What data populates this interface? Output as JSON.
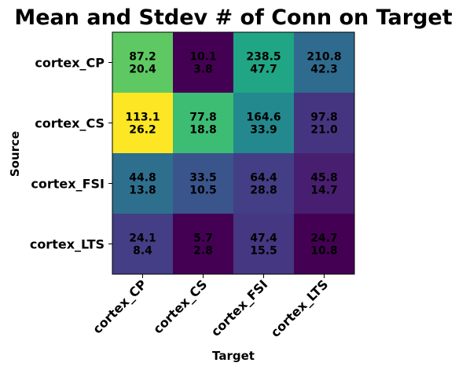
{
  "chart_data": {
    "type": "heatmap",
    "title": "Mean and Stdev # of Conn on Target",
    "xlabel": "Target",
    "ylabel": "Source",
    "x_categories": [
      "cortex_CP",
      "cortex_CS",
      "cortex_FSI",
      "cortex_LTS"
    ],
    "y_categories": [
      "cortex_CP",
      "cortex_CS",
      "cortex_FSI",
      "cortex_LTS"
    ],
    "mean": [
      [
        "87.2",
        "10.1",
        "238.5",
        "210.8"
      ],
      [
        "113.1",
        "77.8",
        "164.6",
        "97.8"
      ],
      [
        "44.8",
        "33.5",
        "64.4",
        "45.8"
      ],
      [
        "24.1",
        "5.7",
        "47.4",
        "24.7"
      ]
    ],
    "stdev": [
      [
        "20.4",
        "3.8",
        "47.7",
        "42.3"
      ],
      [
        "26.2",
        "18.8",
        "33.9",
        "21.0"
      ],
      [
        "13.8",
        "10.5",
        "28.8",
        "14.7"
      ],
      [
        "8.4",
        "2.8",
        "15.5",
        "10.8"
      ]
    ],
    "colors": [
      [
        "#5ec962",
        "#440154",
        "#21a685",
        "#2f6b8e"
      ],
      [
        "#fde725",
        "#3dbc74",
        "#23898e",
        "#453581"
      ],
      [
        "#2e6f8e",
        "#3a548c",
        "#433e85",
        "#481f70"
      ],
      [
        "#433e85",
        "#440154",
        "#453781",
        "#440154"
      ]
    ],
    "colormap": "viridis"
  }
}
